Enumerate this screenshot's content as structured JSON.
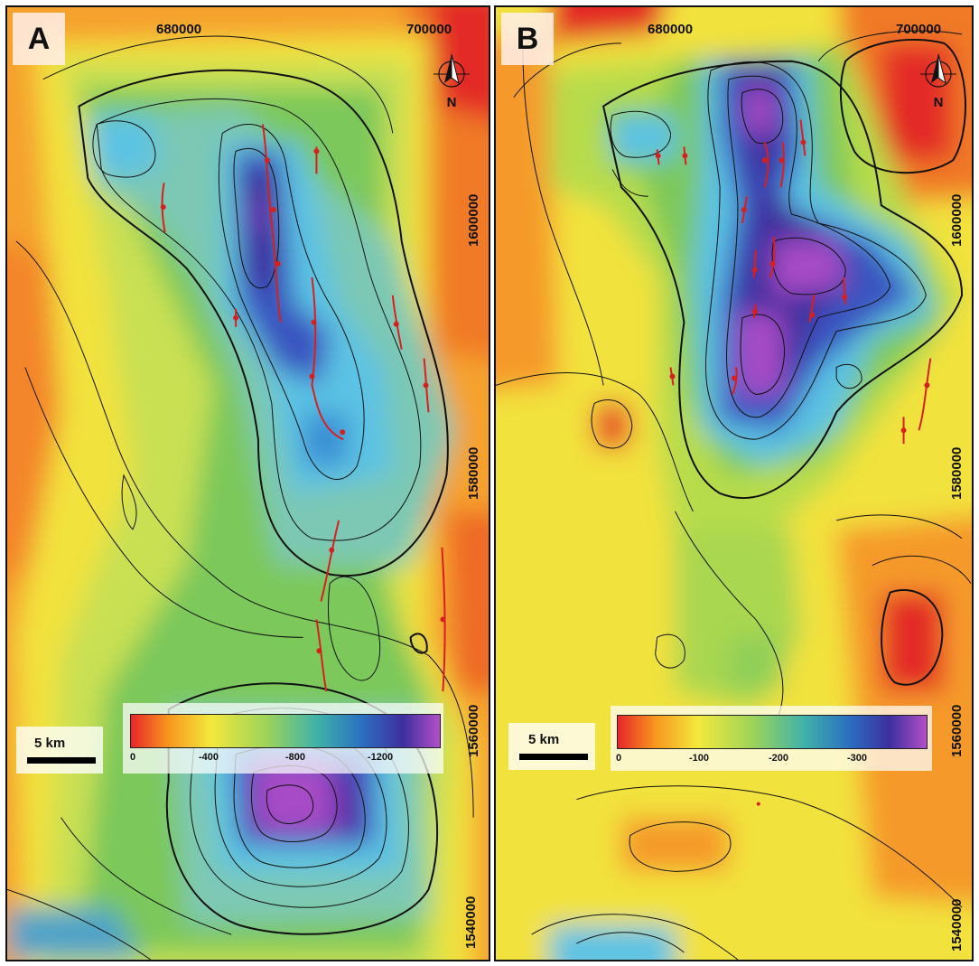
{
  "panels": [
    {
      "label": "A",
      "x_ticks": [
        "680000",
        "700000"
      ],
      "y_ticks": [
        "1600000",
        "1580000",
        "1560000",
        "1540000"
      ],
      "north_label": "N",
      "legend": {
        "ticks": [
          "0",
          "-400",
          "-800",
          "-1200"
        ],
        "colors": [
          "#e8262a",
          "#f7961e",
          "#f3e93c",
          "#9cd35a",
          "#40b3a8",
          "#2a6fc0",
          "#3d2f9e",
          "#b24fc8"
        ]
      },
      "scale_label": "5 km"
    },
    {
      "label": "B",
      "x_ticks": [
        "680000",
        "700000"
      ],
      "y_ticks": [
        "1600000",
        "1580000",
        "1560000",
        "1540000"
      ],
      "north_label": "N",
      "legend": {
        "ticks": [
          "0",
          "-100",
          "-200",
          "-300"
        ],
        "colors": [
          "#e8262a",
          "#f7961e",
          "#f3e93c",
          "#9cd35a",
          "#40b3a8",
          "#2a6fc0",
          "#3d2f9e",
          "#b24fc8"
        ]
      },
      "scale_label": "5 km"
    }
  ],
  "palette": {
    "red": "#e32a25",
    "orange": "#f59a2c",
    "yellow": "#f2e23e",
    "yellowgreen": "#c9e052",
    "green": "#7cc85a",
    "teal": "#56b8a0",
    "cyan": "#58c2e6",
    "blue": "#3b55c0",
    "indigo": "#412f9e",
    "purple": "#a74bc6",
    "fault": "#d62020"
  }
}
